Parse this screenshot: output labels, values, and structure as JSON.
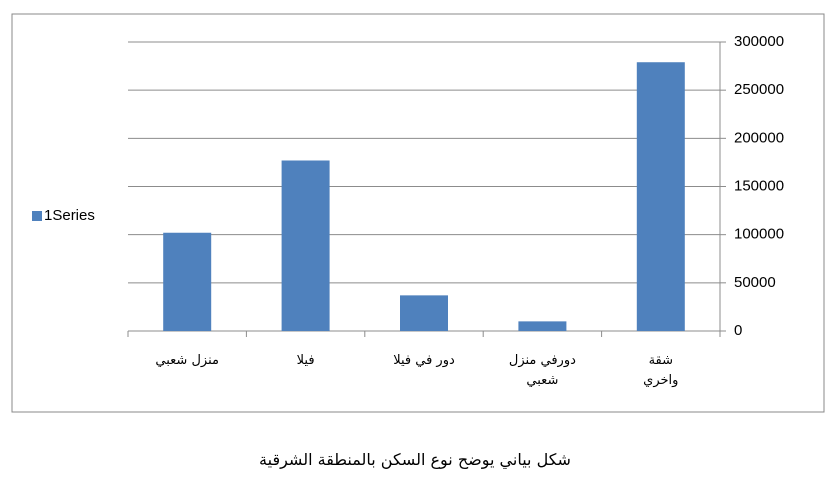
{
  "chart_data": {
    "type": "bar",
    "caption": "شكل بياني يوضح نوع السكن بالمنطقة الشرقية",
    "categories": [
      "منزل شعبي",
      "فيلا",
      "دور في فيلا",
      "دورفي منزل شعبي",
      "شقة واخري"
    ],
    "series": [
      {
        "name": "1Series",
        "color": "#4f81bd",
        "values": [
          102000,
          177000,
          37000,
          10000,
          279000
        ]
      }
    ],
    "ylim": [
      0,
      300000
    ],
    "yticks": [
      0,
      50000,
      100000,
      150000,
      200000,
      250000,
      300000
    ],
    "grid": true,
    "legend": "left",
    "y_axis_side": "right"
  }
}
